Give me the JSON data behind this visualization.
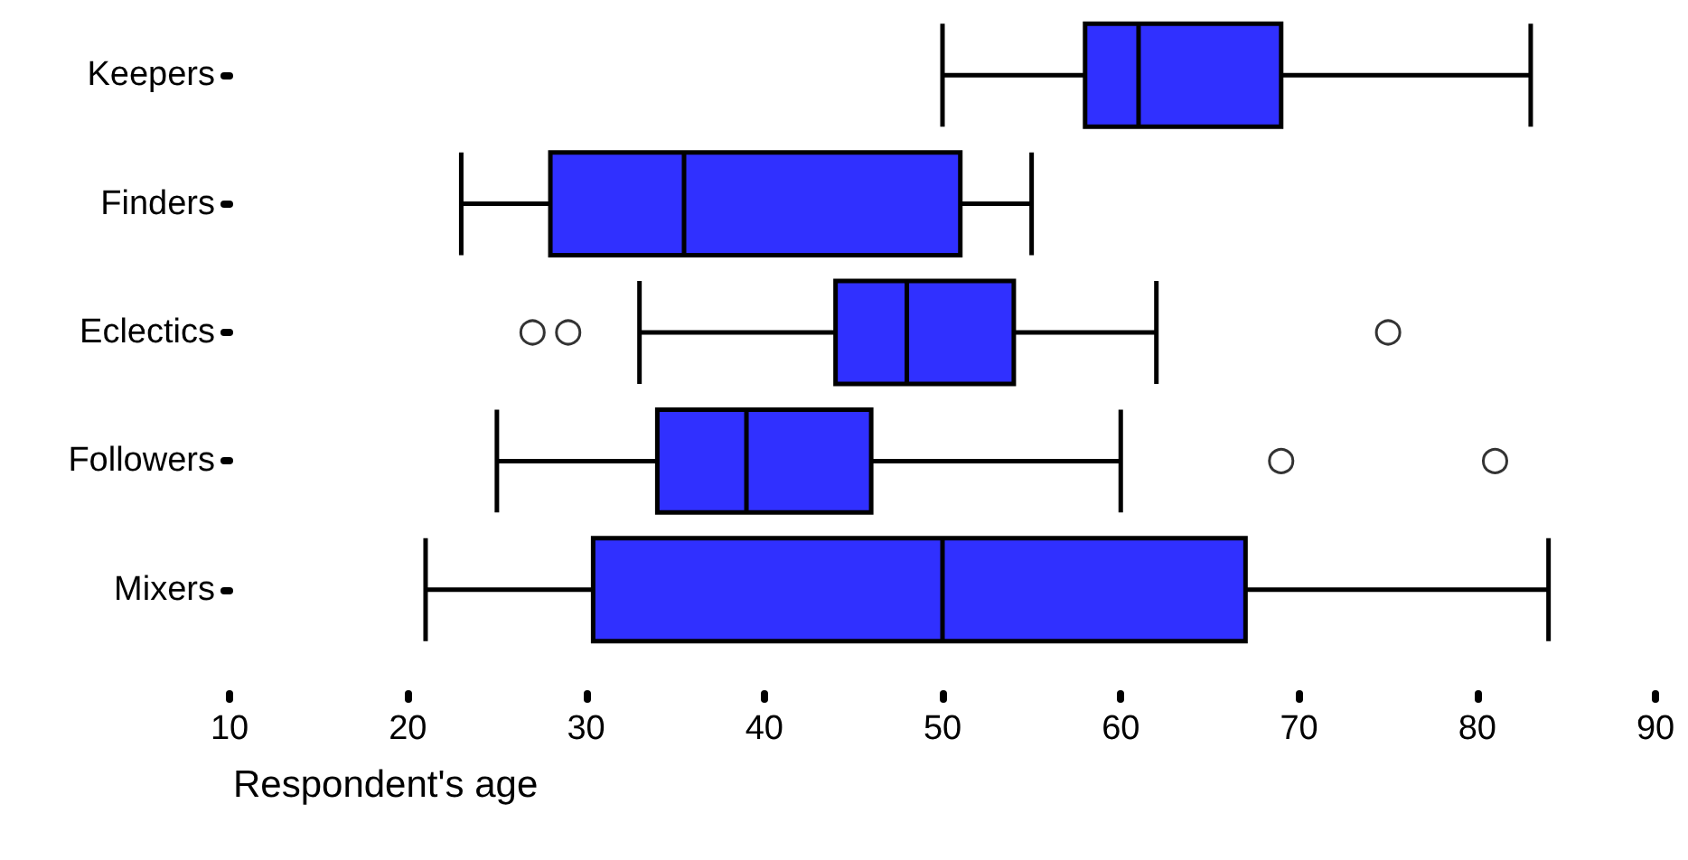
{
  "chart_data": {
    "type": "box",
    "orientation": "horizontal",
    "xlabel": "Respondent's age",
    "categories": [
      "Keepers",
      "Finders",
      "Eclectics",
      "Followers",
      "Mixers"
    ],
    "color": "#3030ff",
    "boxes": [
      {
        "low": 50,
        "q1": 58,
        "median": 61,
        "q3": 69,
        "high": 83
      },
      {
        "low": 23,
        "q1": 28,
        "median": 35.5,
        "q3": 51,
        "high": 55
      },
      {
        "low": 33,
        "q1": 44,
        "median": 48,
        "q3": 54,
        "high": 62,
        "outliers": [
          27,
          29,
          75
        ]
      },
      {
        "low": 25,
        "q1": 34,
        "median": 39,
        "q3": 46,
        "high": 60,
        "outliers": [
          69,
          81
        ]
      },
      {
        "low": 21,
        "q1": 30.4,
        "median": 50,
        "q3": 67,
        "high": 84
      }
    ],
    "xlim": [
      10,
      90
    ],
    "xticks": [
      10,
      20,
      30,
      40,
      50,
      60,
      70,
      80,
      90
    ],
    "grid": false
  }
}
